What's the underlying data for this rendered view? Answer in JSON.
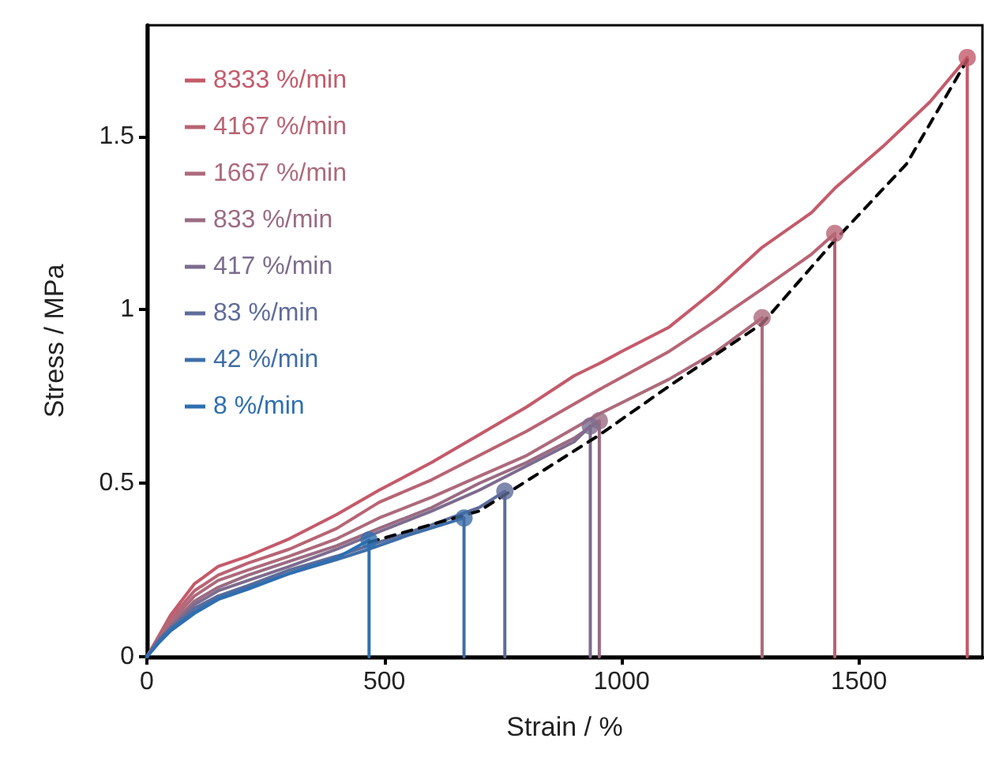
{
  "chart_data": {
    "type": "line",
    "xlabel": "Strain / %",
    "ylabel": "Stress / MPa",
    "xlim": [
      0,
      1760
    ],
    "xticks": [
      0,
      500,
      1000,
      1500
    ],
    "ylim": [
      0,
      1.82
    ],
    "yticks": [
      0,
      0.5,
      1,
      1.5
    ],
    "grid": false,
    "legend": "top left",
    "marker": "none",
    "line_style": "solid",
    "series": [
      {
        "name": "8333 %/min",
        "color": "#c45a6a",
        "x": [
          0,
          25,
          50,
          100,
          150,
          213,
          300,
          400,
          489,
          600,
          700,
          800,
          900,
          953,
          1000,
          1100,
          1200,
          1296,
          1400,
          1449,
          1550,
          1650,
          1728,
          1728
        ],
        "values": [
          0,
          0.06,
          0.12,
          0.21,
          0.26,
          0.29,
          0.34,
          0.41,
          0.48,
          0.56,
          0.64,
          0.72,
          0.81,
          0.845,
          0.88,
          0.95,
          1.06,
          1.18,
          1.28,
          1.35,
          1.47,
          1.6,
          1.727,
          0
        ]
      },
      {
        "name": "4167 %/min",
        "color": "#b86474",
        "x": [
          0,
          25,
          50,
          100,
          150,
          213,
          300,
          400,
          489,
          600,
          700,
          800,
          953,
          1100,
          1200,
          1296,
          1400,
          1449,
          1449
        ],
        "values": [
          0,
          0.055,
          0.11,
          0.19,
          0.235,
          0.27,
          0.31,
          0.37,
          0.445,
          0.51,
          0.58,
          0.65,
          0.77,
          0.88,
          0.97,
          1.06,
          1.16,
          1.22,
          0
        ]
      },
      {
        "name": "1667 %/min",
        "color": "#ad6a7c",
        "x": [
          0,
          25,
          50,
          100,
          150,
          213,
          300,
          400,
          489,
          600,
          700,
          800,
          953,
          1100,
          1200,
          1296,
          1296
        ],
        "values": [
          0,
          0.05,
          0.1,
          0.175,
          0.22,
          0.25,
          0.29,
          0.34,
          0.4,
          0.46,
          0.52,
          0.58,
          0.7,
          0.8,
          0.88,
          0.977,
          0
        ]
      },
      {
        "name": "833 %/min",
        "color": "#9a6b82",
        "x": [
          0,
          25,
          50,
          100,
          150,
          213,
          300,
          400,
          489,
          600,
          700,
          800,
          900,
          953,
          953
        ],
        "values": [
          0,
          0.05,
          0.09,
          0.16,
          0.2,
          0.235,
          0.275,
          0.32,
          0.37,
          0.43,
          0.5,
          0.56,
          0.63,
          0.68,
          0
        ]
      },
      {
        "name": "417 %/min",
        "color": "#7d6c8e",
        "x": [
          0,
          25,
          50,
          100,
          150,
          213,
          300,
          400,
          489,
          600,
          700,
          800,
          900,
          934,
          934
        ],
        "values": [
          0,
          0.05,
          0.085,
          0.15,
          0.19,
          0.22,
          0.26,
          0.31,
          0.36,
          0.42,
          0.48,
          0.55,
          0.62,
          0.665,
          0
        ]
      },
      {
        "name": "83 %/min",
        "color": "#5e6c9a",
        "x": [
          0,
          25,
          50,
          100,
          150,
          213,
          300,
          400,
          489,
          600,
          700,
          754,
          754
        ],
        "values": [
          0,
          0.045,
          0.08,
          0.14,
          0.175,
          0.205,
          0.25,
          0.29,
          0.33,
          0.38,
          0.43,
          0.477,
          0
        ]
      },
      {
        "name": "42 %/min",
        "color": "#3f6ea8",
        "x": [
          0,
          25,
          50,
          100,
          150,
          213,
          300,
          400,
          468,
          550,
          668,
          668
        ],
        "values": [
          0,
          0.045,
          0.08,
          0.13,
          0.17,
          0.2,
          0.24,
          0.28,
          0.31,
          0.35,
          0.4,
          0
        ]
      },
      {
        "name": "8 %/min",
        "color": "#2e6fb0",
        "x": [
          0,
          25,
          50,
          100,
          150,
          213,
          300,
          400,
          468,
          468
        ],
        "values": [
          0,
          0.04,
          0.075,
          0.125,
          0.165,
          0.195,
          0.24,
          0.285,
          0.336,
          0
        ]
      },
      {
        "type": "scatter",
        "marker": "circle",
        "x": [
          1728,
          1449,
          1296,
          953,
          934,
          754,
          668,
          468
        ],
        "values": [
          1.727,
          1.22,
          0.977,
          0.68,
          0.665,
          0.477,
          0.4,
          0.336
        ],
        "colors": [
          "#c45a6a",
          "#b86474",
          "#ad6a7c",
          "#9a6b82",
          "#7d6c8e",
          "#5e6c9a",
          "#3f6ea8",
          "#2e6fb0"
        ]
      },
      {
        "type": "line",
        "color": "#000000",
        "line_style": "dashed",
        "x": [
          468,
          700,
          954,
          1100,
          1296,
          1449,
          1600,
          1728
        ],
        "values": [
          0.33,
          0.42,
          0.64,
          0.78,
          0.96,
          1.2,
          1.42,
          1.72
        ]
      }
    ]
  }
}
